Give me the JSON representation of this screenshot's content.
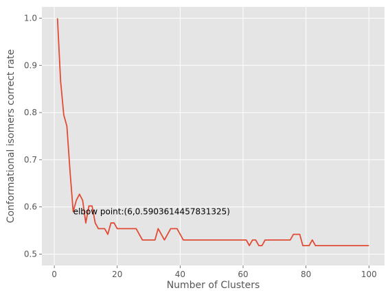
{
  "chart_data": {
    "type": "line",
    "title": "",
    "xlabel": "Number of Clusters",
    "ylabel": "Conformational isomers correct rate",
    "xlim": [
      -3.95,
      104.95
    ],
    "ylim": [
      0.476,
      1.024
    ],
    "xticks": [
      0,
      20,
      40,
      60,
      80,
      100
    ],
    "yticks": [
      0.5,
      0.6,
      0.7,
      0.8,
      0.9,
      1.0
    ],
    "xtick_labels": [
      "0",
      "20",
      "40",
      "60",
      "80",
      "100"
    ],
    "ytick_labels": [
      "0.5",
      "0.6",
      "0.7",
      "0.8",
      "0.9",
      "1.0"
    ],
    "grid": true,
    "line_color": "#E24A33",
    "background_color": "#E5E5E5",
    "grid_color": "#FFFFFF",
    "series": [
      {
        "x": [
          1,
          2,
          3,
          4,
          5,
          6,
          7,
          8,
          9,
          10,
          11,
          12,
          13,
          14,
          15,
          16,
          17,
          18,
          19,
          20,
          21,
          22,
          23,
          24,
          25,
          26,
          27,
          28,
          29,
          30,
          31,
          32,
          33,
          34,
          35,
          36,
          37,
          38,
          39,
          40,
          41,
          42,
          43,
          44,
          45,
          46,
          47,
          48,
          49,
          50,
          51,
          52,
          53,
          54,
          55,
          56,
          57,
          58,
          59,
          60,
          61,
          62,
          63,
          64,
          65,
          66,
          67,
          68,
          69,
          70,
          71,
          72,
          73,
          74,
          75,
          76,
          77,
          78,
          79,
          80,
          81,
          82,
          83,
          84,
          85,
          86,
          87,
          88,
          89,
          90,
          91,
          92,
          93,
          94,
          95,
          96,
          97,
          98,
          99,
          100
        ],
        "y": [
          1.0,
          0.867,
          0.795,
          0.771,
          0.675,
          0.59,
          0.614,
          0.627,
          0.614,
          0.566,
          0.602,
          0.602,
          0.566,
          0.554,
          0.554,
          0.554,
          0.542,
          0.566,
          0.566,
          0.554,
          0.554,
          0.554,
          0.554,
          0.554,
          0.554,
          0.554,
          0.542,
          0.53,
          0.53,
          0.53,
          0.53,
          0.53,
          0.554,
          0.542,
          0.53,
          0.542,
          0.554,
          0.554,
          0.554,
          0.542,
          0.53,
          0.53,
          0.53,
          0.53,
          0.53,
          0.53,
          0.53,
          0.53,
          0.53,
          0.53,
          0.53,
          0.53,
          0.53,
          0.53,
          0.53,
          0.53,
          0.53,
          0.53,
          0.53,
          0.53,
          0.53,
          0.518,
          0.53,
          0.53,
          0.518,
          0.518,
          0.53,
          0.53,
          0.53,
          0.53,
          0.53,
          0.53,
          0.53,
          0.53,
          0.53,
          0.542,
          0.542,
          0.542,
          0.518,
          0.518,
          0.518,
          0.53,
          0.518,
          0.518,
          0.518,
          0.518,
          0.518,
          0.518,
          0.518,
          0.518,
          0.518,
          0.518,
          0.518,
          0.518,
          0.518,
          0.518,
          0.518,
          0.518,
          0.518,
          0.518
        ]
      }
    ],
    "annotations": [
      {
        "text": "elbow point:(6,0.5903614457831325)",
        "x": 6,
        "y": 0.5903614457831325
      }
    ]
  }
}
